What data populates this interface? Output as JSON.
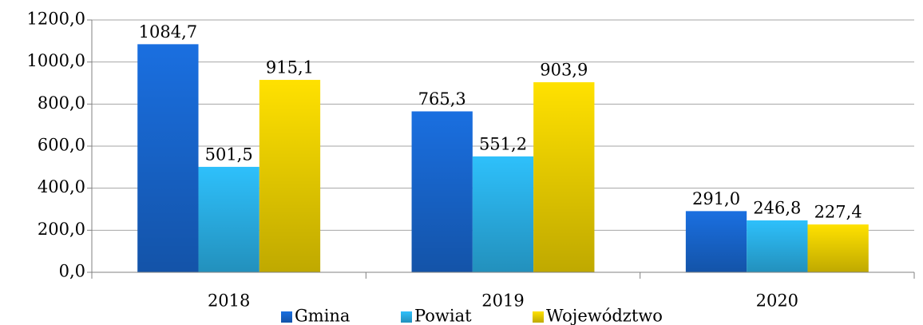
{
  "chart_data": {
    "type": "bar",
    "categories": [
      "2018",
      "2019",
      "2020"
    ],
    "series": [
      {
        "name": "Gmina",
        "color": "#1a6fe0",
        "values": [
          1084.7,
          765.3,
          291.0
        ],
        "value_labels": [
          "1084,7",
          "765,3",
          "291,0"
        ]
      },
      {
        "name": "Powiat",
        "color": "#2ec0fb",
        "values": [
          501.5,
          551.2,
          246.8
        ],
        "value_labels": [
          "501,5",
          "551,2",
          "246,8"
        ]
      },
      {
        "name": "Województwo",
        "color": "#ffe100",
        "values": [
          915.1,
          903.9,
          227.4
        ],
        "value_labels": [
          "915,1",
          "903,9",
          "227,4"
        ]
      }
    ],
    "ylim": [
      0,
      1200
    ],
    "yticks": [
      {
        "value": 0,
        "label": "0,0"
      },
      {
        "value": 200,
        "label": "200,0"
      },
      {
        "value": 400,
        "label": "400,0"
      },
      {
        "value": 600,
        "label": "600,0"
      },
      {
        "value": 800,
        "label": "800,0"
      },
      {
        "value": 1000,
        "label": "1000,0"
      },
      {
        "value": 1200,
        "label": "1200,0"
      }
    ],
    "grid": true,
    "legend": "bottom"
  }
}
